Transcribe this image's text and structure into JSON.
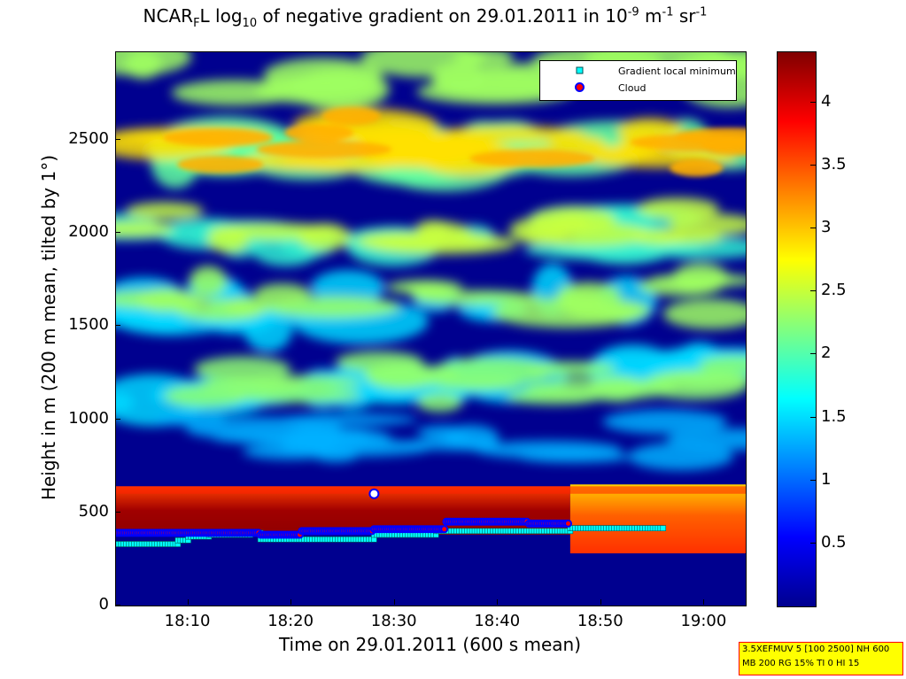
{
  "title": {
    "prefix": "NCAR",
    "sub1": "F",
    "mid1": "L log",
    "sub2": "10",
    "mid2": " of negative gradient on 29.01.2011 in 10",
    "sup1": "-9",
    "mid3": " m",
    "sup2": "-1",
    "mid4": " sr",
    "sup3": "-1"
  },
  "axes": {
    "xlabel": "Time on 29.01.2011 (600 s mean)",
    "ylabel": "Height in m (200 m mean, tilted by 1°)"
  },
  "legend": {
    "items": [
      {
        "label": "Gradient local minimum"
      },
      {
        "label": "Cloud"
      }
    ]
  },
  "info_box": {
    "line1": "3.5XEFMUV 5 [100 2500] NH 600",
    "line2": "MB 200 RG 15% TI 0 HI 15"
  },
  "chart_data": {
    "type": "heatmap",
    "x_ticks": [
      "18:10",
      "18:20",
      "18:30",
      "18:40",
      "18:50",
      "19:00"
    ],
    "y_ticks": [
      "0",
      "500",
      "1000",
      "1500",
      "2000",
      "2500"
    ],
    "colorbar_ticks": [
      "0.5",
      "1",
      "1.5",
      "2",
      "2.5",
      "3",
      "3.5",
      "4"
    ],
    "colorbar_range": [
      0,
      4.4
    ],
    "ylim": [
      0,
      2970
    ],
    "xlim": [
      "18:03",
      "19:04"
    ],
    "colormap": "jet",
    "gradient_local_minimum": [
      {
        "t": "18:03-18:09",
        "h": 330
      },
      {
        "t": "18:09-18:10",
        "h": 350
      },
      {
        "t": "18:10-18:12",
        "h": 370
      },
      {
        "t": "18:12-18:16",
        "h": 380
      },
      {
        "t": "18:16-18:17",
        "h": 390
      },
      {
        "t": "18:17-18:28",
        "h": 355
      },
      {
        "t": "18:28-18:34",
        "h": 380
      },
      {
        "t": "18:34-18:47",
        "h": 400
      },
      {
        "t": "18:47-18:56",
        "h": 415
      }
    ],
    "cloud": [
      {
        "t": "18:03-18:17",
        "h": 390
      },
      {
        "t": "18:17-18:21",
        "h": 380
      },
      {
        "t": "18:21-18:28",
        "h": 400
      },
      {
        "t": "18:28-18:35",
        "h": 410
      },
      {
        "t": "18:35-18:43",
        "h": 450
      },
      {
        "t": "18:43-18:47",
        "h": 440
      },
      {
        "t": "18:28",
        "h": 600
      }
    ],
    "colors": {
      "minimum_marker": "#00ffff",
      "cloud_marker_fill": "#ff0000",
      "cloud_marker_edge": "#0000ff"
    }
  }
}
